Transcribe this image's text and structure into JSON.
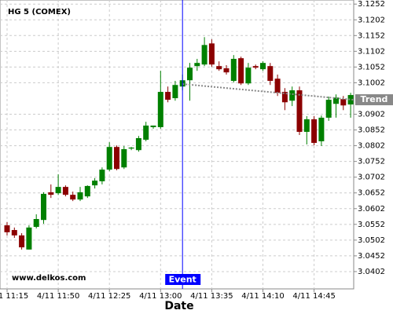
{
  "chart_data": {
    "type": "candlestick",
    "title": "HG 5 (COMEX)",
    "xlabel": "Date",
    "watermark": "www.delkos.com",
    "categories": [
      "4/11 11:15",
      null,
      null,
      null,
      null,
      null,
      null,
      "4/11 11:50",
      null,
      null,
      null,
      null,
      null,
      null,
      "4/11 12:25",
      null,
      null,
      null,
      null,
      null,
      null,
      "4/11 13:00",
      null,
      null,
      null,
      null,
      null,
      null,
      "4/11 13:35",
      null,
      null,
      null,
      null,
      null,
      null,
      "4/11 14:10",
      null,
      null,
      null,
      null,
      null,
      null,
      "4/11 14:45",
      null,
      null,
      null,
      null,
      null
    ],
    "open": [
      3.0549,
      3.0534,
      3.0517,
      3.0472,
      3.0544,
      3.0566,
      3.0654,
      3.0651,
      3.0671,
      3.0646,
      3.0631,
      3.0641,
      3.0676,
      3.0689,
      3.0726,
      3.0798,
      3.0733,
      3.0793,
      3.0788,
      3.0821,
      3.0861,
      3.0861,
      3.0973,
      3.0953,
      3.099,
      3.101,
      3.1055,
      3.106,
      3.1127,
      3.1055,
      3.1048,
      3.1008,
      3.108,
      3.1,
      3.1055,
      3.1045,
      3.1055,
      3.1015,
      3.0973,
      3.0945,
      3.0978,
      3.0846,
      3.0886,
      3.0816,
      3.0891,
      3.0935,
      3.095,
      3.0933
    ],
    "high": [
      3.0559,
      3.0542,
      3.0524,
      3.0549,
      3.0584,
      3.0654,
      3.0679,
      3.0711,
      3.0676,
      3.0656,
      3.0671,
      3.0676,
      3.0699,
      3.0733,
      3.0813,
      3.0803,
      3.0801,
      3.0798,
      3.0833,
      3.0878,
      3.0866,
      3.104,
      3.099,
      3.1008,
      3.1028,
      3.1065,
      3.1078,
      3.1147,
      3.114,
      3.107,
      3.1058,
      3.109,
      3.1085,
      3.1065,
      3.106,
      3.107,
      3.1065,
      3.1028,
      3.0985,
      3.099,
      3.099,
      3.0896,
      3.0896,
      3.0898,
      3.0958,
      3.0965,
      3.096,
      3.097
    ],
    "low": [
      3.0517,
      3.0509,
      3.0472,
      3.0472,
      3.0539,
      3.0554,
      3.0636,
      3.0646,
      3.0641,
      3.0626,
      3.0626,
      3.0636,
      3.0666,
      3.0679,
      3.0721,
      3.0724,
      3.0728,
      3.0788,
      3.0783,
      3.0816,
      3.0856,
      3.0856,
      3.094,
      3.0945,
      3.0978,
      3.0945,
      3.104,
      3.1055,
      3.1053,
      3.104,
      3.1028,
      3.1003,
      3.0995,
      3.0995,
      3.1045,
      3.104,
      3.0995,
      3.096,
      3.0915,
      3.0928,
      3.0836,
      3.0806,
      3.0803,
      3.0801,
      3.0881,
      3.0891,
      3.0915,
      3.0891
    ],
    "close": [
      3.0527,
      3.0517,
      3.0479,
      3.0542,
      3.0569,
      3.0649,
      3.0646,
      3.0671,
      3.0646,
      3.0631,
      3.0654,
      3.0674,
      3.0691,
      3.0726,
      3.0798,
      3.0728,
      3.0791,
      3.0796,
      3.0826,
      3.0866,
      3.0866,
      3.0973,
      3.0948,
      3.0995,
      3.101,
      3.105,
      3.1065,
      3.1122,
      3.106,
      3.1045,
      3.1035,
      3.1078,
      3.1,
      3.105,
      3.105,
      3.1065,
      3.1008,
      3.097,
      3.094,
      3.0978,
      3.0846,
      3.0886,
      3.0811,
      3.0891,
      3.0948,
      3.0955,
      3.093,
      3.0963
    ],
    "up_color": "#008000",
    "down_color": "#8b0000",
    "ylim": [
      3.0347,
      3.1265
    ],
    "yticks": [
      3.1252,
      3.1202,
      3.1152,
      3.1102,
      3.1052,
      3.1002,
      3.0902,
      3.0852,
      3.0802,
      3.0752,
      3.0702,
      3.0652,
      3.0602,
      3.0552,
      3.0502,
      3.0452,
      3.0402
    ],
    "grid": true,
    "event": {
      "label": "Event",
      "color": "#0000ff"
    },
    "trend": {
      "name": "Trend",
      "start": 3.0998,
      "end": 3.0948,
      "color": "#888888"
    }
  }
}
